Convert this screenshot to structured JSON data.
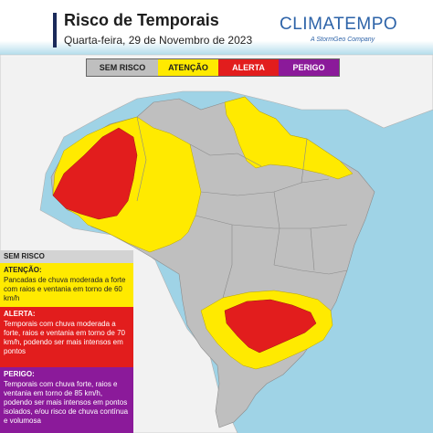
{
  "header": {
    "title": "Risco de Temporais",
    "subtitle": "Quarta-feira, 29 de Novembro de 2023",
    "brand": "CLIMATEMPO",
    "brand_sub": "A StormGeo Company"
  },
  "legend_bar": [
    {
      "label": "SEM RISCO",
      "color": "#bfbfbf"
    },
    {
      "label": "ATENÇÃO",
      "color": "#ffea00"
    },
    {
      "label": "ALERTA",
      "color": "#e21d1d"
    },
    {
      "label": "PERIGO",
      "color": "#8b1a9a"
    }
  ],
  "legend_panels": {
    "none": {
      "heading": "SEM RISCO"
    },
    "attention": {
      "heading": "ATENÇÃO:",
      "text": "Pancadas de chuva moderada a forte com raios e ventania em torno de 60 km/h"
    },
    "alert": {
      "heading": "ALERTA:",
      "text": "Temporais com chuva moderada a forte, raios e ventania em torno de 70 km/h, podendo ser mais intensos em pontos"
    },
    "danger": {
      "heading": "PERIGO:",
      "text": "Temporais com chuva forte, raios e ventania em torno de 85 km/h, podendo ser mais intensos em pontos isolados, e/ou risco de chuva contínua e volumosa"
    }
  },
  "colors": {
    "ocean": "#9fd3e6",
    "land_outside": "#f2f2f2",
    "no_risk": "#bfbfbf",
    "attention": "#ffea00",
    "alert": "#e21d1d",
    "danger": "#8b1a9a"
  }
}
